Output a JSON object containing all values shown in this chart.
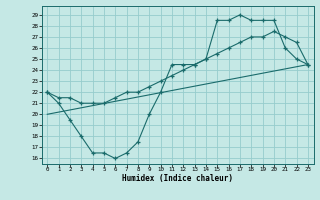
{
  "bg_color": "#c5e8e5",
  "grid_color": "#96cccc",
  "line_color": "#1a6b6b",
  "xlabel": "Humidex (Indice chaleur)",
  "xlim_min": -0.5,
  "xlim_max": 23.5,
  "ylim_min": 15.5,
  "ylim_max": 29.8,
  "xticks": [
    0,
    1,
    2,
    3,
    4,
    5,
    6,
    7,
    8,
    9,
    10,
    11,
    12,
    13,
    14,
    15,
    16,
    17,
    18,
    19,
    20,
    21,
    22,
    23
  ],
  "yticks": [
    16,
    17,
    18,
    19,
    20,
    21,
    22,
    23,
    24,
    25,
    26,
    27,
    28,
    29
  ],
  "curve1_x": [
    0,
    1,
    2,
    3,
    4,
    5,
    6,
    7,
    8,
    9,
    10,
    11,
    12,
    13,
    14,
    15,
    16,
    17,
    18,
    19,
    20,
    21,
    22,
    23
  ],
  "curve1_y": [
    22,
    21,
    19.5,
    18,
    16.5,
    16.5,
    16,
    16.5,
    17.5,
    20,
    22,
    24.5,
    24.5,
    24.5,
    25,
    28.5,
    28.5,
    29,
    28.5,
    28.5,
    28.5,
    26,
    25,
    24.5
  ],
  "curve2_x": [
    0,
    1,
    2,
    3,
    4,
    5,
    6,
    7,
    8,
    9,
    10,
    11,
    12,
    13,
    14,
    15,
    16,
    17,
    18,
    19,
    20,
    21,
    22,
    23
  ],
  "curve2_y": [
    22,
    21.5,
    21.5,
    21,
    21,
    21,
    21.5,
    22,
    22,
    22.5,
    23,
    23.5,
    24,
    24.5,
    25,
    25.5,
    26,
    26.5,
    27,
    27,
    27.5,
    27,
    26.5,
    24.5
  ],
  "line3_x": [
    0,
    23
  ],
  "line3_y": [
    20,
    24.5
  ]
}
